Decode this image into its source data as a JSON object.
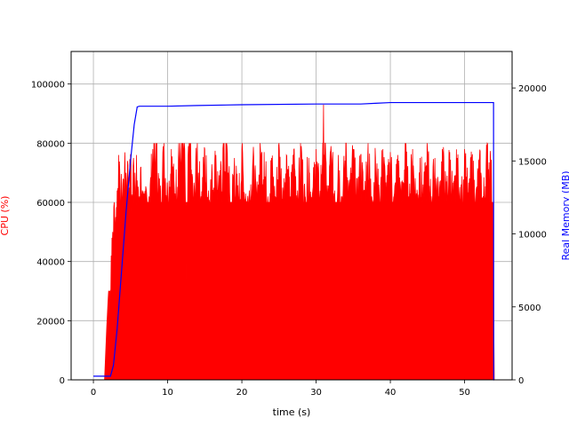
{
  "chart_data": {
    "type": "line",
    "title": "",
    "xlabel": "time (s)",
    "ylabel_left": "CPU (%)",
    "ylabel_right": "Real Memory (MB)",
    "xlim": [
      -3.0,
      56.4
    ],
    "ylim_left": [
      0,
      111000
    ],
    "ylim_right": [
      0,
      22500
    ],
    "x_ticks": [
      0,
      10,
      20,
      30,
      40,
      50
    ],
    "y_ticks_left": [
      0,
      20000,
      40000,
      60000,
      80000,
      100000
    ],
    "y_ticks_right": [
      0,
      5000,
      10000,
      15000,
      20000
    ],
    "grid": true,
    "colors": {
      "cpu": "#ff0000",
      "memory": "#0000ff"
    },
    "series": [
      {
        "name": "CPU (%)",
        "axis": "left",
        "style": "filled-spikes",
        "x": [
          0,
          1.5,
          1.8,
          2.0,
          2.2,
          2.4,
          2.6,
          2.8,
          3.0,
          3.2,
          3.4,
          3.6,
          3.8,
          4.0,
          4.2,
          4.4,
          4.6,
          4.8,
          5.0,
          5.2,
          5.4,
          5.6,
          5.8,
          6.0,
          6.2,
          6.4,
          6.6,
          6.8,
          7.0,
          7.5,
          8.0,
          8.5,
          9.0,
          9.5,
          10.0,
          10.5,
          11.0,
          11.5,
          12.0,
          12.3,
          12.5,
          12.8,
          13.0,
          13.5,
          14.0,
          14.5,
          15.0,
          15.5,
          16.0,
          16.5,
          17.0,
          17.5,
          18.0,
          18.5,
          19.0,
          19.5,
          20.0,
          20.5,
          21.0,
          21.5,
          22.0,
          22.5,
          23.0,
          23.5,
          24.0,
          24.5,
          25.0,
          25.5,
          26.0,
          26.5,
          27.0,
          27.5,
          28.0,
          28.5,
          29.0,
          29.5,
          30.0,
          30.5,
          31.0,
          31.3,
          31.6,
          32.0,
          32.5,
          33.0,
          33.5,
          34.0,
          34.5,
          35.0,
          35.5,
          36.0,
          36.5,
          37.0,
          37.5,
          38.0,
          38.5,
          39.0,
          39.5,
          40.0,
          40.5,
          41.0,
          41.5,
          42.0,
          42.5,
          43.0,
          43.5,
          44.0,
          44.5,
          45.0,
          45.5,
          46.0,
          46.5,
          47.0,
          47.5,
          48.0,
          48.5,
          49.0,
          49.5,
          50.0,
          50.5,
          51.0,
          51.5,
          52.0,
          52.5,
          53.0,
          53.5,
          53.8,
          54.0
        ],
        "y": [
          0,
          0,
          18000,
          28000,
          5000,
          42000,
          50000,
          60000,
          55000,
          64000,
          76000,
          63000,
          66000,
          68000,
          72000,
          70000,
          74000,
          65000,
          76000,
          62000,
          75000,
          70000,
          76000,
          61000,
          62000,
          72000,
          64000,
          63000,
          61000,
          62000,
          78000,
          79000,
          62000,
          80000,
          64000,
          78000,
          63000,
          80000,
          80000,
          78000,
          27000,
          79000,
          80000,
          62000,
          80000,
          62000,
          78000,
          64000,
          70000,
          76000,
          65000,
          80000,
          79000,
          60000,
          75000,
          62000,
          78000,
          63000,
          64000,
          75000,
          62000,
          78000,
          77000,
          62000,
          75000,
          62000,
          80000,
          65000,
          76000,
          62000,
          78000,
          64000,
          79000,
          62000,
          75000,
          63000,
          78000,
          62000,
          93000,
          75000,
          62000,
          79000,
          64000,
          76000,
          62000,
          80000,
          65000,
          78000,
          62000,
          76000,
          64000,
          80000,
          62000,
          75000,
          63000,
          78000,
          64000,
          77000,
          62000,
          76000,
          62000,
          80000,
          62000,
          78000,
          63000,
          75000,
          64000,
          78000,
          62000,
          75000,
          62000,
          78000,
          64000,
          77000,
          62000,
          75000,
          60000,
          78000,
          62000,
          75000,
          62000,
          75000,
          62000,
          79000,
          75000,
          60000,
          0
        ]
      },
      {
        "name": "Real Memory (MB)",
        "axis": "right",
        "style": "line",
        "x": [
          0,
          2.3,
          2.7,
          3.2,
          3.8,
          4.4,
          5.0,
          5.5,
          5.9,
          6.2,
          10,
          14,
          20,
          30,
          36,
          38,
          40,
          45,
          50,
          53.9,
          53.92,
          54.0
        ],
        "y": [
          250,
          250,
          1000,
          3500,
          7500,
          11500,
          15000,
          17500,
          18700,
          18750,
          18750,
          18800,
          18850,
          18900,
          18900,
          18950,
          19000,
          19000,
          19000,
          19000,
          0,
          0
        ]
      }
    ]
  }
}
